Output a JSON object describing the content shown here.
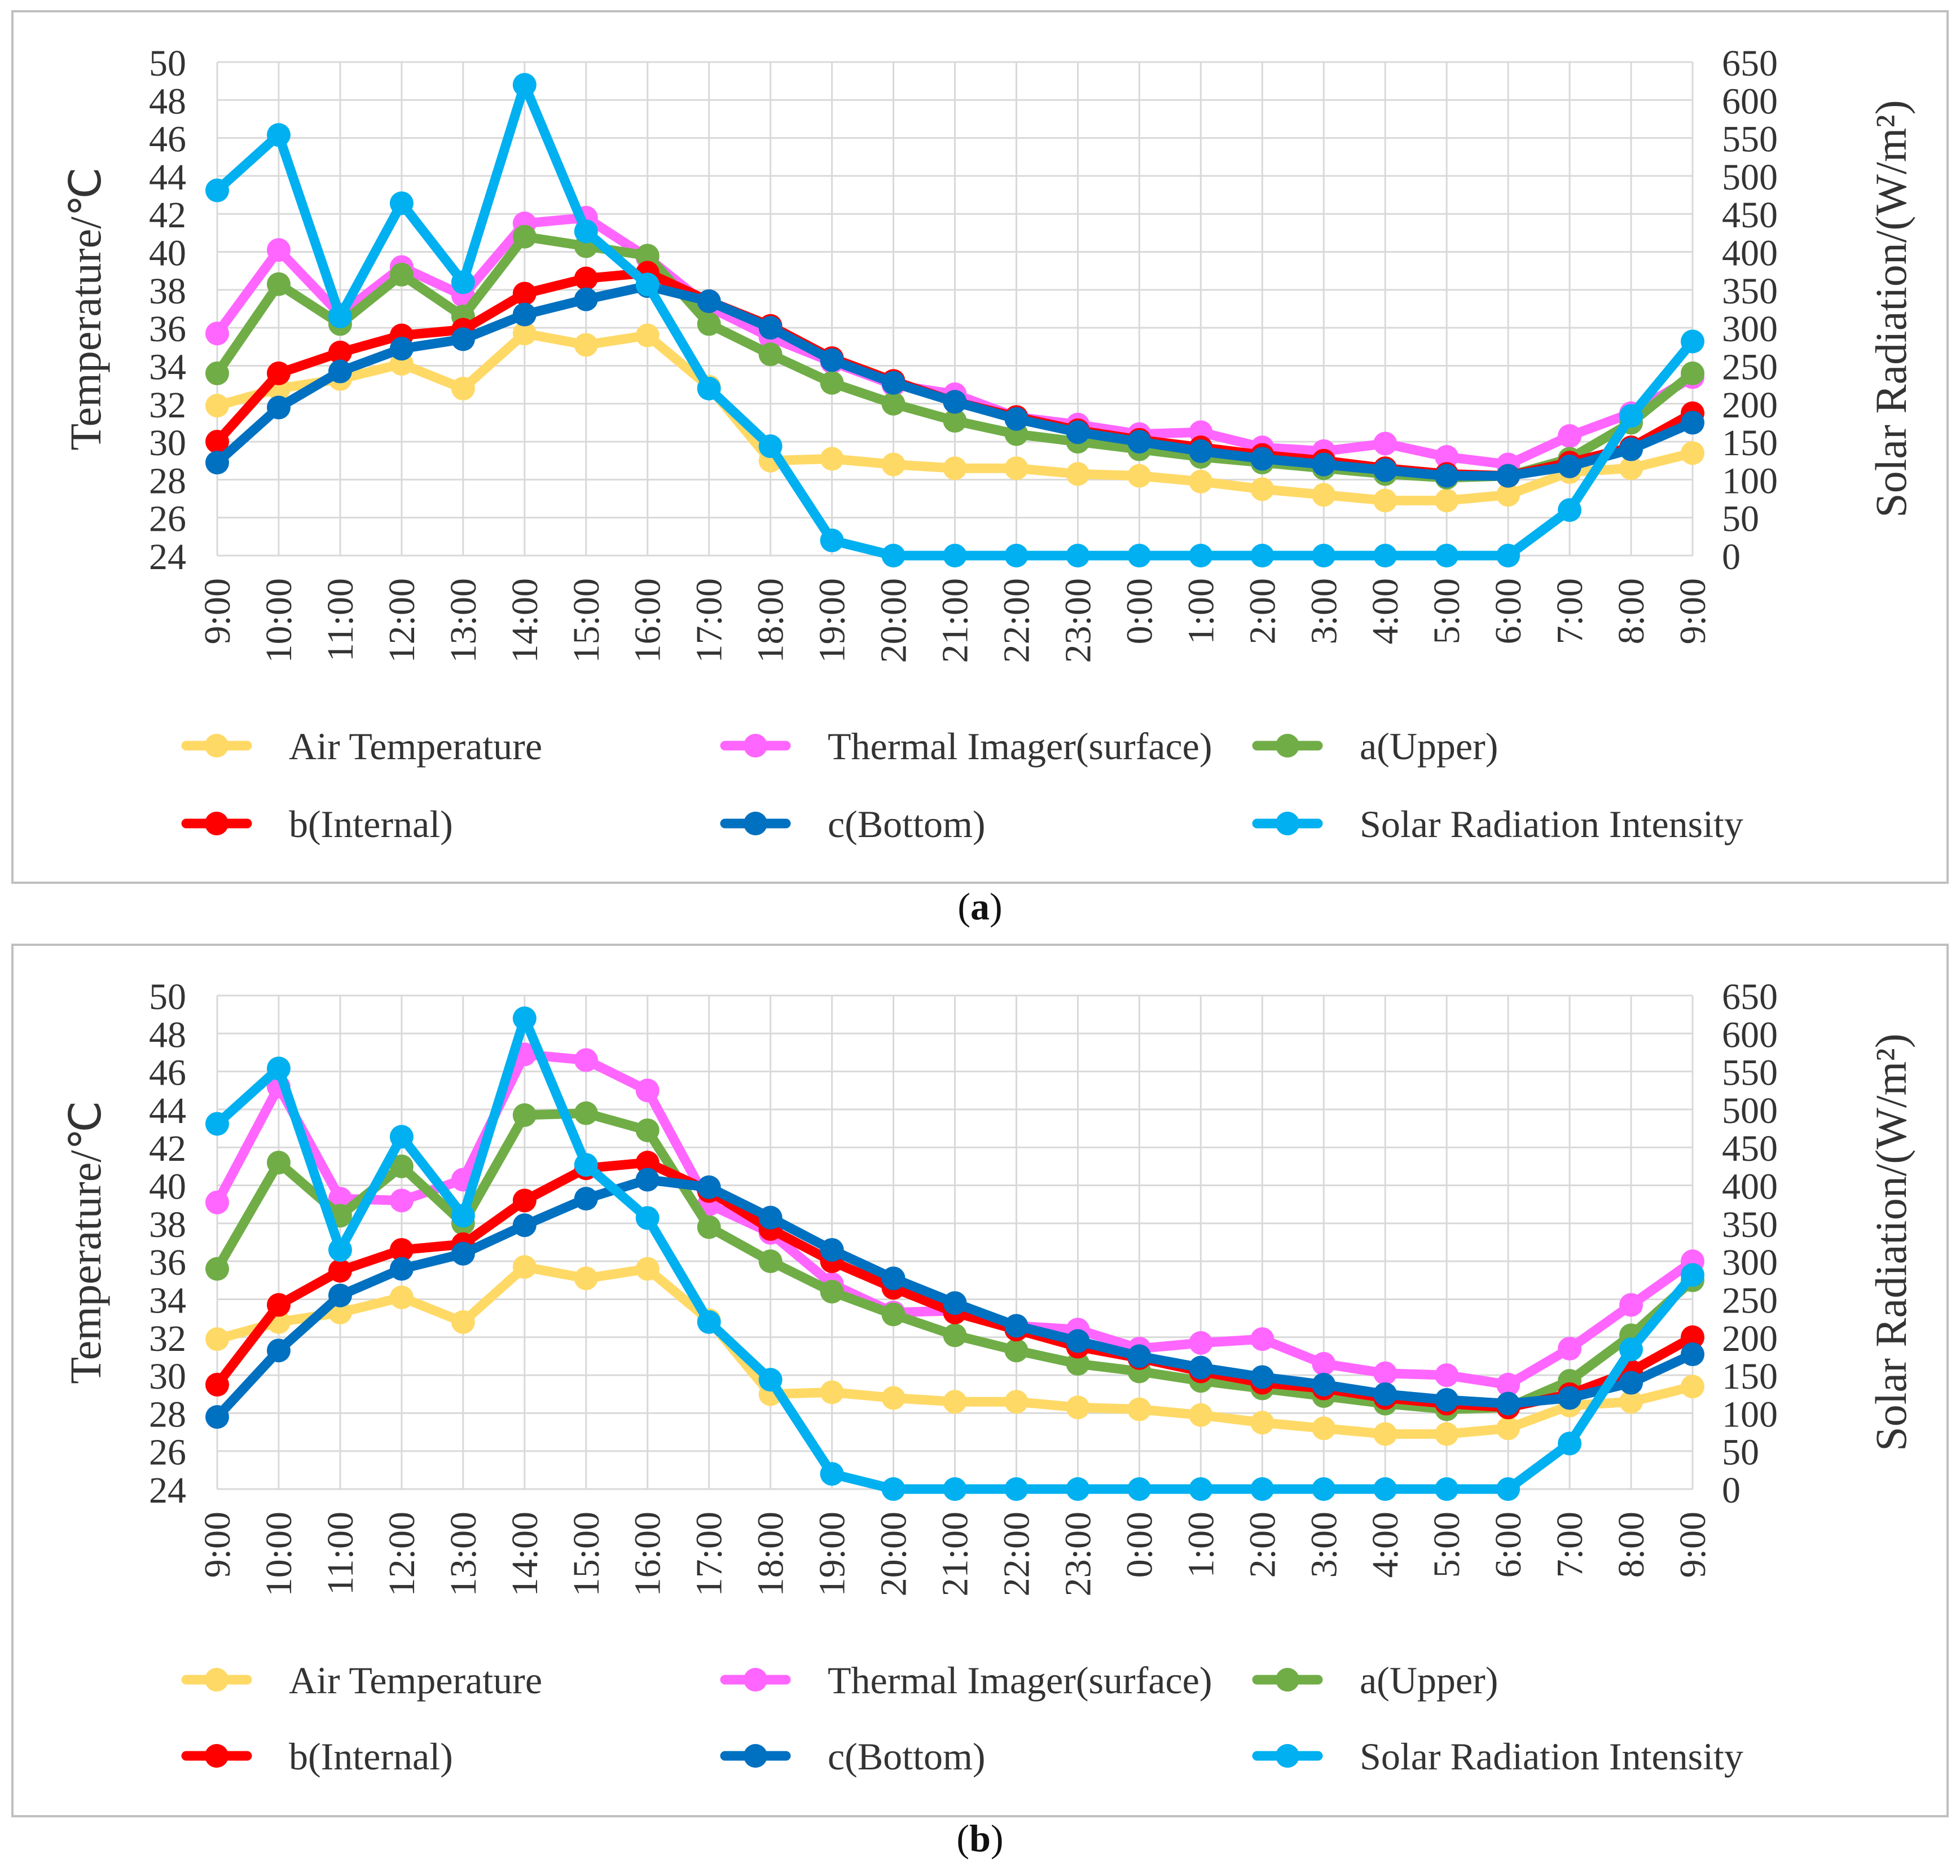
{
  "colors": {
    "air": "#FFD966",
    "thermal": "#FF66FF",
    "upper": "#70AD47",
    "internal": "#FF0000",
    "bottom": "#0070C0",
    "solar": "#00B0F0",
    "grid": "#D9D9D9",
    "frame": "#BFBFBF"
  },
  "chart_data": [
    {
      "type": "line",
      "panel_label": "a",
      "title": "",
      "xlabel": "",
      "ylabel": "Temperature/℃",
      "ylabel_right": "Solar Radiation/(W/m²)",
      "ylim": [
        24,
        50
      ],
      "ylim_right": [
        0,
        650
      ],
      "yticks": [
        "24",
        "26",
        "28",
        "30",
        "32",
        "34",
        "36",
        "38",
        "40",
        "42",
        "44",
        "46",
        "48",
        "50"
      ],
      "yticks_right": [
        "0",
        "50",
        "100",
        "150",
        "200",
        "250",
        "300",
        "350",
        "400",
        "450",
        "500",
        "550",
        "600",
        "650"
      ],
      "grid": true,
      "legend_position": "bottom",
      "categories": [
        "9:00",
        "10:00",
        "11:00",
        "12:00",
        "13:00",
        "14:00",
        "15:00",
        "16:00",
        "17:00",
        "18:00",
        "19:00",
        "20:00",
        "21:00",
        "22:00",
        "23:00",
        "0:00",
        "1:00",
        "2:00",
        "3:00",
        "4:00",
        "5:00",
        "6:00",
        "7:00",
        "8:00",
        "9:00"
      ],
      "series": [
        {
          "name": "Air Temperature",
          "axis": "left",
          "color_key": "air",
          "values": [
            31.9,
            32.8,
            33.3,
            34.1,
            32.8,
            35.7,
            35.1,
            35.6,
            32.9,
            29.0,
            29.1,
            28.8,
            28.6,
            28.6,
            28.3,
            28.2,
            27.9,
            27.5,
            27.2,
            26.9,
            26.9,
            27.2,
            28.4,
            28.6,
            29.4
          ]
        },
        {
          "name": "Thermal Imager(surface)",
          "axis": "left",
          "color_key": "thermal",
          "values": [
            35.7,
            40.1,
            36.7,
            39.2,
            37.7,
            41.5,
            41.8,
            39.7,
            37.1,
            35.5,
            34.2,
            33.0,
            32.5,
            31.3,
            30.9,
            30.4,
            30.5,
            29.7,
            29.5,
            29.9,
            29.2,
            28.8,
            30.3,
            31.5,
            33.4
          ]
        },
        {
          "name": "a(Upper)",
          "axis": "left",
          "color_key": "upper",
          "values": [
            33.6,
            38.3,
            36.2,
            38.8,
            36.6,
            40.8,
            40.3,
            39.8,
            36.2,
            34.6,
            33.1,
            32.0,
            31.1,
            30.4,
            30.0,
            29.6,
            29.2,
            28.9,
            28.6,
            28.3,
            28.1,
            28.2,
            29.1,
            31.0,
            33.6
          ]
        },
        {
          "name": "b(Internal)",
          "axis": "left",
          "color_key": "internal",
          "values": [
            30.0,
            33.6,
            34.7,
            35.6,
            35.9,
            37.8,
            38.6,
            38.9,
            37.4,
            36.1,
            34.4,
            33.2,
            32.1,
            31.3,
            30.6,
            30.1,
            29.7,
            29.3,
            29.0,
            28.6,
            28.3,
            28.2,
            28.9,
            29.7,
            31.5
          ]
        },
        {
          "name": "c(Bottom)",
          "axis": "left",
          "color_key": "bottom",
          "values": [
            28.9,
            31.8,
            33.7,
            34.9,
            35.4,
            36.7,
            37.5,
            38.2,
            37.4,
            36.0,
            34.3,
            33.1,
            32.1,
            31.2,
            30.5,
            30.0,
            29.5,
            29.1,
            28.8,
            28.5,
            28.2,
            28.2,
            28.7,
            29.6,
            31.0
          ]
        },
        {
          "name": "Solar Radiation Intensity",
          "axis": "right",
          "color_key": "solar",
          "values": [
            481,
            554,
            315,
            464,
            360,
            620,
            427,
            357,
            220,
            144,
            20,
            0,
            0,
            0,
            0,
            0,
            0,
            0,
            0,
            0,
            0,
            0,
            60,
            184,
            282
          ]
        }
      ]
    },
    {
      "type": "line",
      "panel_label": "b",
      "title": "",
      "xlabel": "",
      "ylabel": "Temperature/℃",
      "ylabel_right": "Solar Radiation/(W/m²)",
      "ylim": [
        24,
        50
      ],
      "ylim_right": [
        0,
        650
      ],
      "yticks": [
        "24",
        "26",
        "28",
        "30",
        "32",
        "34",
        "36",
        "38",
        "40",
        "42",
        "44",
        "46",
        "48",
        "50"
      ],
      "yticks_right": [
        "0",
        "50",
        "100",
        "150",
        "200",
        "250",
        "300",
        "350",
        "400",
        "450",
        "500",
        "550",
        "600",
        "650"
      ],
      "grid": true,
      "legend_position": "bottom",
      "categories": [
        "9:00",
        "10:00",
        "11:00",
        "12:00",
        "13:00",
        "14:00",
        "15:00",
        "16:00",
        "17:00",
        "18:00",
        "19:00",
        "20:00",
        "21:00",
        "22:00",
        "23:00",
        "0:00",
        "1:00",
        "2:00",
        "3:00",
        "4:00",
        "5:00",
        "6:00",
        "7:00",
        "8:00",
        "9:00"
      ],
      "series": [
        {
          "name": "Air Temperature",
          "axis": "left",
          "color_key": "air",
          "values": [
            31.9,
            32.8,
            33.3,
            34.1,
            32.8,
            35.7,
            35.1,
            35.6,
            32.9,
            29.0,
            29.1,
            28.8,
            28.6,
            28.6,
            28.3,
            28.2,
            27.9,
            27.5,
            27.2,
            26.9,
            26.9,
            27.2,
            28.4,
            28.6,
            29.4
          ]
        },
        {
          "name": "Thermal Imager(surface)",
          "axis": "left",
          "color_key": "thermal",
          "values": [
            39.1,
            45.2,
            39.3,
            39.2,
            40.3,
            46.9,
            46.6,
            45.0,
            39.0,
            37.5,
            34.8,
            33.3,
            33.4,
            32.6,
            32.4,
            31.4,
            31.7,
            31.9,
            30.6,
            30.1,
            30.0,
            29.5,
            31.4,
            33.7,
            36.0
          ]
        },
        {
          "name": "a(Upper)",
          "axis": "left",
          "color_key": "upper",
          "values": [
            35.6,
            41.2,
            38.4,
            41.0,
            38.0,
            43.7,
            43.8,
            42.9,
            37.8,
            36.0,
            34.4,
            33.2,
            32.1,
            31.3,
            30.6,
            30.2,
            29.7,
            29.3,
            28.9,
            28.5,
            28.2,
            28.3,
            29.7,
            32.1,
            35.0
          ]
        },
        {
          "name": "b(Internal)",
          "axis": "left",
          "color_key": "internal",
          "values": [
            29.5,
            33.7,
            35.5,
            36.6,
            36.9,
            39.2,
            40.9,
            41.2,
            39.7,
            37.7,
            36.0,
            34.6,
            33.3,
            32.4,
            31.5,
            30.9,
            30.2,
            29.6,
            29.3,
            28.8,
            28.5,
            28.3,
            29.0,
            30.2,
            32.0
          ]
        },
        {
          "name": "c(Bottom)",
          "axis": "left",
          "color_key": "bottom",
          "values": [
            27.8,
            31.3,
            34.2,
            35.6,
            36.4,
            37.9,
            39.3,
            40.3,
            39.9,
            38.3,
            36.6,
            35.1,
            33.8,
            32.6,
            31.8,
            31.0,
            30.4,
            29.9,
            29.5,
            29.0,
            28.7,
            28.5,
            28.8,
            29.6,
            31.1
          ]
        },
        {
          "name": "Solar Radiation Intensity",
          "axis": "right",
          "color_key": "solar",
          "values": [
            481,
            554,
            315,
            464,
            360,
            620,
            427,
            357,
            220,
            144,
            20,
            0,
            0,
            0,
            0,
            0,
            0,
            0,
            0,
            0,
            0,
            0,
            60,
            184,
            282
          ]
        }
      ]
    }
  ]
}
